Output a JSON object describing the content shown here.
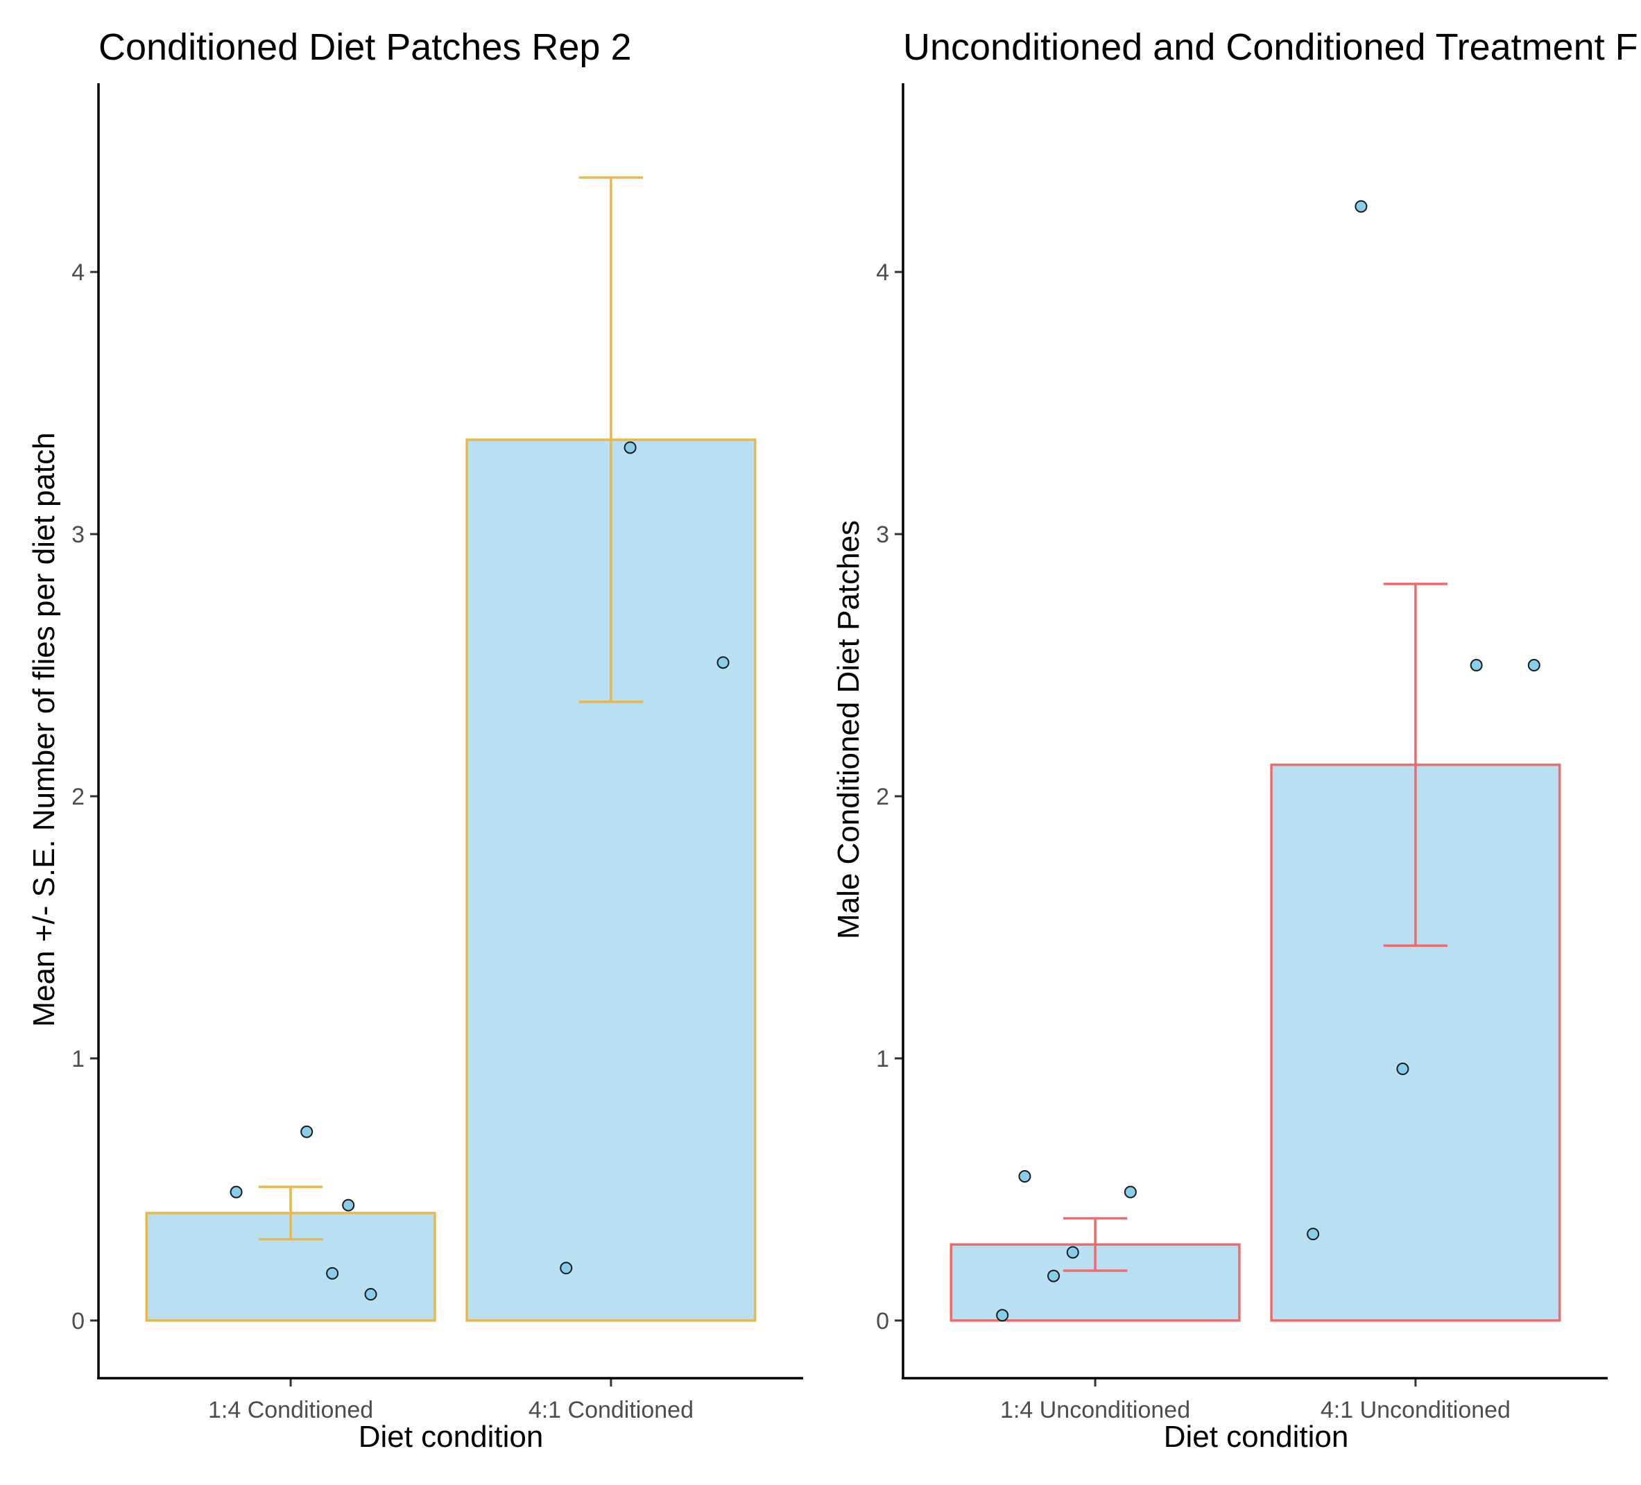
{
  "chart_data": [
    {
      "type": "bar",
      "title": "Conditioned Diet Patches Rep 2",
      "xlabel": "Diet condition",
      "ylabel": "Mean +/- S.E. Number of flies per diet patch",
      "categories": [
        "1:4 Conditioned",
        "4:1 Conditioned"
      ],
      "values": [
        0.41,
        3.36
      ],
      "error_low": [
        0.31,
        2.36
      ],
      "error_high": [
        0.51,
        4.36
      ],
      "points": [
        {
          "category": "1:4 Conditioned",
          "offset": 0.05,
          "y": 0.72
        },
        {
          "category": "1:4 Conditioned",
          "offset": -0.17,
          "y": 0.49
        },
        {
          "category": "1:4 Conditioned",
          "offset": 0.18,
          "y": 0.44
        },
        {
          "category": "1:4 Conditioned",
          "offset": 0.13,
          "y": 0.18
        },
        {
          "category": "1:4 Conditioned",
          "offset": 0.25,
          "y": 0.1
        },
        {
          "category": "4:1 Conditioned",
          "offset": 0.06,
          "y": 3.33
        },
        {
          "category": "4:1 Conditioned",
          "offset": 0.35,
          "y": 2.51
        },
        {
          "category": "4:1 Conditioned",
          "offset": -0.14,
          "y": 0.2
        }
      ],
      "ylim": [
        -0.22,
        4.72
      ],
      "yticks": [
        0,
        1,
        2,
        3,
        4
      ],
      "grid": false,
      "legend": "none",
      "colors": {
        "fill": "#b8e0f2",
        "outline": "#e8b84b",
        "point": "#87ceeb",
        "point_stroke": "#1a1a1a"
      }
    },
    {
      "type": "bar",
      "title": "Unconditioned and Conditioned Treatment F",
      "xlabel": "Diet condition",
      "ylabel": "Male Conditioned Diet Patches",
      "categories": [
        "1:4 Unconditioned",
        "4:1 Unconditioned"
      ],
      "values": [
        0.29,
        2.12
      ],
      "error_low": [
        0.19,
        1.43
      ],
      "error_high": [
        0.39,
        2.81
      ],
      "points": [
        {
          "category": "1:4 Unconditioned",
          "offset": -0.22,
          "y": 0.55
        },
        {
          "category": "1:4 Unconditioned",
          "offset": 0.11,
          "y": 0.49
        },
        {
          "category": "1:4 Unconditioned",
          "offset": -0.07,
          "y": 0.26
        },
        {
          "category": "1:4 Unconditioned",
          "offset": -0.13,
          "y": 0.17
        },
        {
          "category": "1:4 Unconditioned",
          "offset": -0.29,
          "y": 0.02
        },
        {
          "category": "4:1 Unconditioned",
          "offset": -0.17,
          "y": 4.25
        },
        {
          "category": "4:1 Unconditioned",
          "offset": 0.19,
          "y": 2.5
        },
        {
          "category": "4:1 Unconditioned",
          "offset": 0.37,
          "y": 2.5
        },
        {
          "category": "4:1 Unconditioned",
          "offset": -0.04,
          "y": 0.96
        },
        {
          "category": "4:1 Unconditioned",
          "offset": -0.32,
          "y": 0.33
        }
      ],
      "ylim": [
        -0.22,
        4.72
      ],
      "yticks": [
        0,
        1,
        2,
        3,
        4
      ],
      "grid": false,
      "legend": "none",
      "colors": {
        "fill": "#b8e0f2",
        "outline": "#f06a6a",
        "point": "#87ceeb",
        "point_stroke": "#1a1a1a"
      }
    }
  ]
}
